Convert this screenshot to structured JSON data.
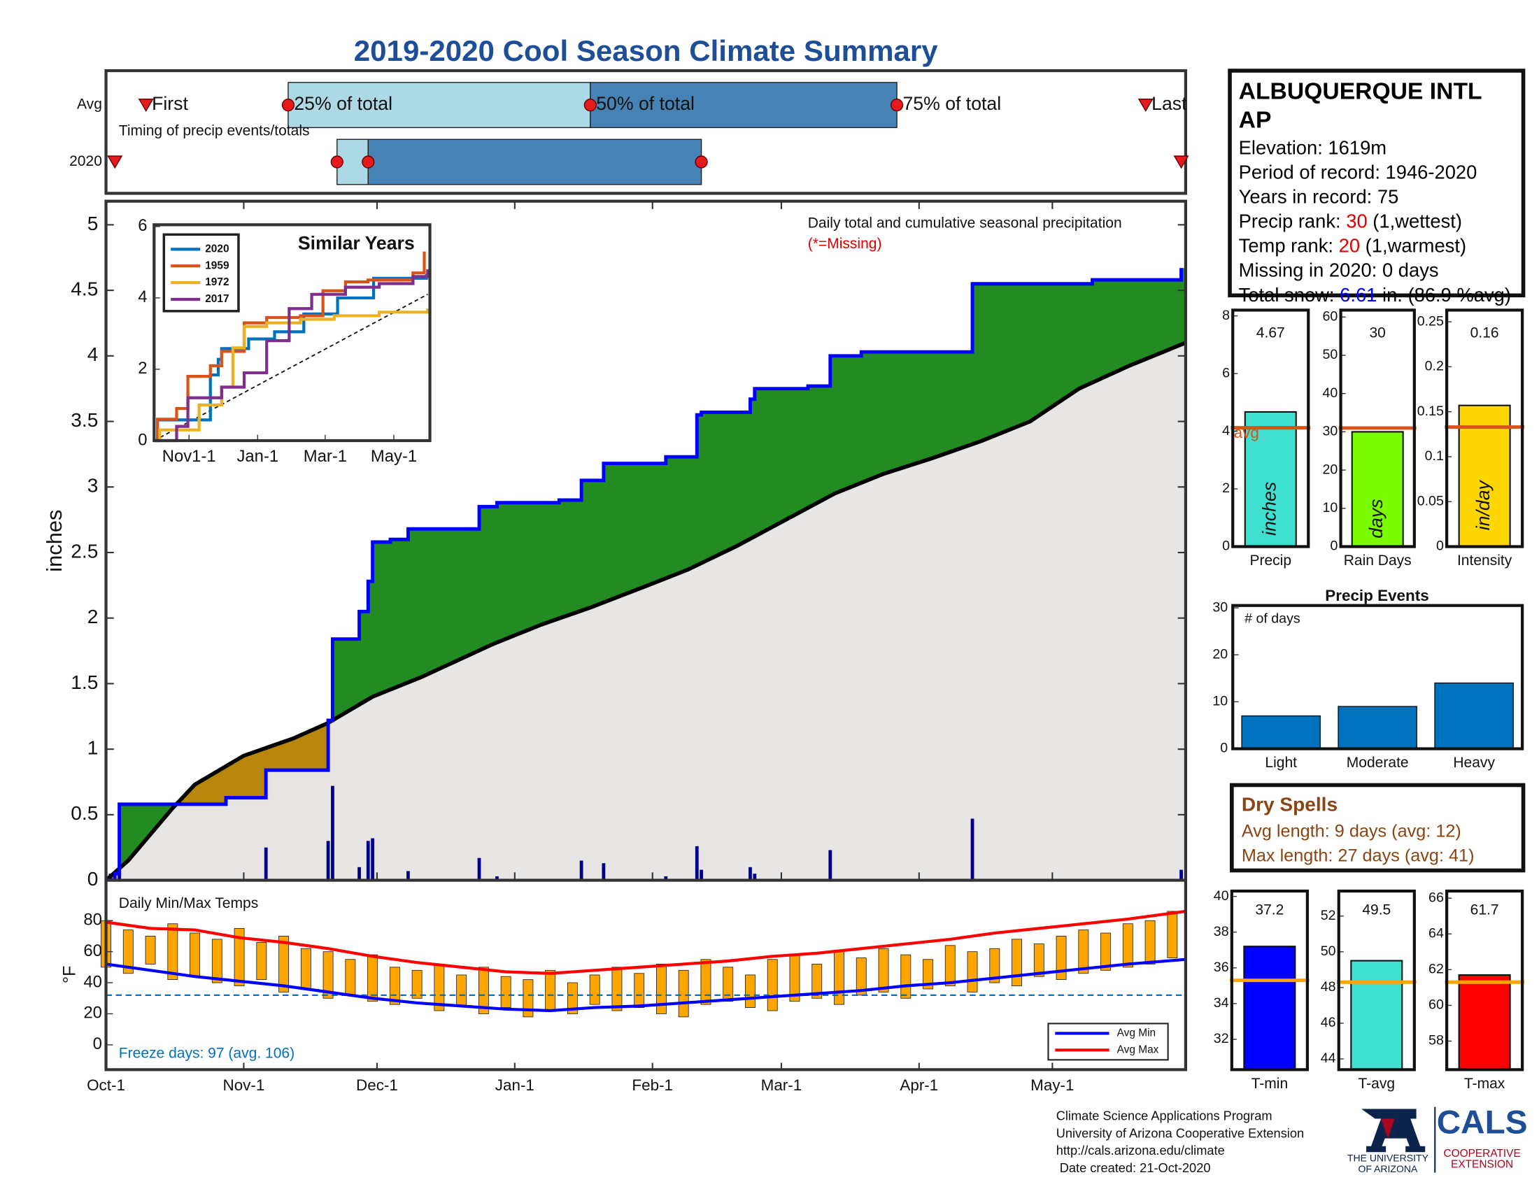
{
  "title": "2019-2020 Cool Season Climate Summary",
  "time_axis": {
    "xlim": [
      0,
      243
    ],
    "xticks": [
      {
        "value": 0,
        "label": "Oct-1"
      },
      {
        "value": 31,
        "label": "Nov-1"
      },
      {
        "value": 61,
        "label": "Dec-1"
      },
      {
        "value": 92,
        "label": "Jan-1"
      },
      {
        "value": 123,
        "label": "Feb-1"
      },
      {
        "value": 152,
        "label": "Mar-1"
      },
      {
        "value": 183,
        "label": "Apr-1"
      },
      {
        "value": 213,
        "label": "May-1"
      }
    ]
  },
  "timing": {
    "row_labels": [
      "Avg",
      "2020"
    ],
    "caption": "Timing of precip events/totals",
    "marker_labels": [
      "First",
      "25% of total",
      "50% of total",
      "75% of total",
      "Last"
    ],
    "avg": [
      9,
      41,
      109,
      178,
      234
    ],
    "y2020": [
      2,
      52,
      59,
      134,
      242
    ],
    "colors": {
      "light": "#add8e6",
      "dark": "#4682b4",
      "marker": "#e41a1c"
    }
  },
  "precip": {
    "type": "step",
    "caption": "Daily total and cumulative seasonal precipitation",
    "missing_note": "(*=Missing)",
    "ylabel": "inches",
    "ylim": [
      0,
      5.18
    ],
    "yticks": [
      0,
      0.5,
      1,
      1.5,
      2,
      2.5,
      3,
      3.5,
      4,
      4.5,
      5
    ],
    "cumulative": {
      "color": "#0000ff",
      "x": [
        0,
        2,
        3,
        27,
        36,
        50,
        51,
        57,
        59,
        60,
        64,
        68,
        84,
        88,
        102,
        107,
        112,
        126,
        133,
        134,
        145,
        146,
        158,
        163,
        170,
        195,
        222,
        242
      ],
      "values": [
        0,
        0.05,
        0.58,
        0.63,
        0.84,
        1.22,
        1.84,
        2.05,
        2.28,
        2.58,
        2.6,
        2.68,
        2.85,
        2.88,
        2.9,
        3.05,
        3.18,
        3.23,
        3.55,
        3.57,
        3.67,
        3.75,
        3.77,
        4.0,
        4.03,
        4.55,
        4.58,
        4.67
      ]
    },
    "average": {
      "color": "#000000",
      "x": [
        0,
        5,
        10,
        15,
        20,
        31,
        42,
        50,
        60,
        71,
        87,
        98,
        109,
        122,
        131,
        142,
        153,
        164,
        175,
        186,
        197,
        208,
        219,
        230,
        243
      ],
      "values": [
        0,
        0.15,
        0.35,
        0.55,
        0.73,
        0.95,
        1.08,
        1.2,
        1.4,
        1.55,
        1.8,
        1.95,
        2.08,
        2.25,
        2.37,
        2.55,
        2.75,
        2.95,
        3.1,
        3.22,
        3.35,
        3.5,
        3.75,
        3.92,
        4.1
      ]
    },
    "daily": {
      "color": "#00008b",
      "x": [
        1,
        3,
        36,
        50,
        51,
        57,
        59,
        60,
        68,
        84,
        88,
        107,
        112,
        126,
        133,
        134,
        145,
        146,
        163,
        195,
        242
      ],
      "values": [
        0.05,
        0.08,
        0.25,
        0.3,
        0.72,
        0.1,
        0.3,
        0.32,
        0.07,
        0.17,
        0.03,
        0.15,
        0.13,
        0.03,
        0.26,
        0.08,
        0.1,
        0.05,
        0.23,
        0.47,
        0.08
      ]
    },
    "colors": {
      "above": "#228b22",
      "below": "#b8860b",
      "base": "#e8e6e4"
    }
  },
  "inset": {
    "type": "line",
    "title": "Similar Years",
    "xlim": [
      0,
      245
    ],
    "ylim": [
      0,
      6.05
    ],
    "yticks": [
      0,
      2,
      4,
      6
    ],
    "xticks": [
      {
        "value": 31,
        "label": "Nov1-1"
      },
      {
        "value": 92,
        "label": "Jan-1"
      },
      {
        "value": 152,
        "label": "Mar-1"
      },
      {
        "value": 213,
        "label": "May-1"
      }
    ],
    "series": [
      {
        "name": "2020",
        "color": "#0072bd",
        "x": [
          0,
          3,
          50,
          57,
          60,
          84,
          107,
          133,
          163,
          195,
          242
        ],
        "values": [
          0,
          0.58,
          1.84,
          2.28,
          2.58,
          2.85,
          3.05,
          3.55,
          4.0,
          4.55,
          4.67
        ]
      },
      {
        "name": "1959",
        "color": "#d95319",
        "x": [
          0,
          3,
          20,
          30,
          50,
          60,
          80,
          100,
          130,
          150,
          170,
          190,
          210,
          230,
          240
        ],
        "values": [
          0,
          0.6,
          0.9,
          1.8,
          2.1,
          2.5,
          3.3,
          3.45,
          3.5,
          4.2,
          4.45,
          4.5,
          4.5,
          4.7,
          5.3
        ]
      },
      {
        "name": "1972",
        "color": "#edb120",
        "x": [
          0,
          5,
          40,
          60,
          70,
          80,
          100,
          130,
          160,
          200,
          243
        ],
        "values": [
          0,
          0.3,
          1.0,
          1.5,
          2.6,
          3.2,
          3.3,
          3.4,
          3.5,
          3.6,
          3.7
        ]
      },
      {
        "name": "2017",
        "color": "#7e2f8e",
        "x": [
          0,
          20,
          30,
          60,
          80,
          100,
          120,
          140,
          170,
          200,
          230,
          243
        ],
        "values": [
          0,
          0.4,
          1.2,
          1.5,
          1.9,
          2.8,
          3.7,
          4.1,
          4.3,
          4.4,
          4.6,
          4.8
        ]
      }
    ],
    "average": {
      "x": [
        0,
        243
      ],
      "values": [
        0,
        4.1
      ]
    }
  },
  "temps": {
    "type": "range-bar",
    "caption": "Daily Min/Max Temps",
    "ylabel": "°F",
    "ylim": [
      -16,
      106
    ],
    "yticks": [
      0,
      20,
      40,
      60,
      80
    ],
    "bar_color": "#ffa500",
    "freeze_line": 32,
    "freeze_color": "#0072bd",
    "freeze_note": "Freeze days: 97 (avg. 106)",
    "x": [
      0,
      5,
      10,
      15,
      20,
      25,
      30,
      35,
      40,
      45,
      50,
      55,
      60,
      65,
      70,
      75,
      80,
      85,
      90,
      95,
      100,
      105,
      110,
      115,
      120,
      125,
      130,
      135,
      140,
      145,
      150,
      155,
      160,
      165,
      170,
      175,
      180,
      185,
      190,
      195,
      200,
      205,
      210,
      215,
      220,
      225,
      230,
      235,
      240
    ],
    "max": [
      80,
      74,
      70,
      78,
      72,
      68,
      75,
      66,
      70,
      62,
      60,
      55,
      58,
      50,
      48,
      52,
      45,
      50,
      44,
      42,
      48,
      40,
      45,
      50,
      46,
      52,
      48,
      55,
      50,
      45,
      55,
      58,
      52,
      60,
      56,
      62,
      58,
      55,
      64,
      60,
      62,
      68,
      65,
      70,
      74,
      72,
      78,
      80,
      86
    ],
    "min": [
      50,
      46,
      52,
      42,
      44,
      40,
      38,
      42,
      34,
      36,
      30,
      32,
      28,
      26,
      30,
      22,
      25,
      20,
      24,
      18,
      22,
      20,
      26,
      22,
      24,
      20,
      18,
      26,
      28,
      24,
      22,
      28,
      30,
      26,
      32,
      34,
      30,
      36,
      38,
      34,
      40,
      38,
      44,
      42,
      46,
      48,
      50,
      52,
      56
    ],
    "series": [
      {
        "name": "Avg Min",
        "color": "#0000ff",
        "x": [
          0,
          10,
          20,
          30,
          40,
          50,
          60,
          70,
          80,
          90,
          100,
          110,
          120,
          130,
          140,
          150,
          160,
          170,
          180,
          190,
          200,
          210,
          220,
          230,
          243
        ],
        "values": [
          52,
          48,
          44,
          41,
          38,
          34,
          30,
          27,
          25,
          23,
          22,
          24,
          25,
          27,
          29,
          31,
          33,
          35,
          38,
          40,
          43,
          46,
          49,
          52,
          55
        ]
      },
      {
        "name": "Avg Max",
        "color": "#ff0000",
        "x": [
          0,
          10,
          20,
          30,
          40,
          50,
          60,
          70,
          80,
          90,
          100,
          110,
          120,
          130,
          140,
          150,
          160,
          170,
          180,
          190,
          200,
          210,
          220,
          230,
          243
        ],
        "values": [
          79,
          75,
          74,
          69,
          66,
          62,
          57,
          53,
          50,
          47,
          46,
          48,
          50,
          52,
          54,
          57,
          59,
          62,
          65,
          68,
          72,
          75,
          78,
          81,
          86
        ]
      }
    ]
  },
  "station": {
    "name": "ALBUQUERQUE INTL AP",
    "lines": [
      [
        {
          "text": "Elevation: 1619m"
        }
      ],
      [
        {
          "text": "Period of record: 1946-2020"
        }
      ],
      [
        {
          "text": "Years in record: 75"
        }
      ],
      [
        {
          "text": "Precip rank: "
        },
        {
          "text": "30",
          "color": "#e00000"
        },
        {
          "text": " (1,wettest)"
        }
      ],
      [
        {
          "text": "Temp rank: "
        },
        {
          "text": "20",
          "color": "#e00000"
        },
        {
          "text": " (1,warmest)"
        }
      ],
      [
        {
          "text": "Missing in 2020: 0 days"
        }
      ],
      [
        {
          "text": "Total snow: "
        },
        {
          "text": "6.61",
          "color": "#0000ff"
        },
        {
          "text": " in. (86.9 %avg)"
        }
      ]
    ]
  },
  "summary_bars": [
    {
      "type": "bar",
      "category": "Precip",
      "values": [
        4.67
      ],
      "unit": "inches",
      "avg": 4.12,
      "avg_label": "avg",
      "ylim": [
        0,
        8.2
      ],
      "yticks": [
        0,
        2,
        4,
        6,
        8
      ],
      "color": "#40e0d0"
    },
    {
      "type": "bar",
      "category": "Rain Days",
      "values": [
        30
      ],
      "unit": "days",
      "avg": 31,
      "ylim": [
        0,
        61.8
      ],
      "yticks": [
        0,
        10,
        20,
        30,
        40,
        50,
        60
      ],
      "color": "#7cfc00"
    },
    {
      "type": "bar",
      "category": "Intensity",
      "values": [
        0.157
      ],
      "value_labels": [
        "0.16"
      ],
      "unit": "in/day",
      "avg": 0.133,
      "ylim": [
        0,
        0.263
      ],
      "yticks": [
        0,
        0.05,
        0.1,
        0.15,
        0.2,
        0.25
      ],
      "color": "#ffd700"
    }
  ],
  "summary_avg_color": "#d95319",
  "events": {
    "type": "bar",
    "title": "Precip Events",
    "note": "# of days",
    "categories": [
      "Light",
      "Moderate",
      "Heavy"
    ],
    "values": [
      7,
      9,
      14
    ],
    "ylim": [
      0,
      30.5
    ],
    "yticks": [
      0,
      10,
      20,
      30
    ],
    "color": "#0072bd"
  },
  "dry_spells": {
    "title": "Dry Spells",
    "lines": [
      "Avg length: 9 days (avg: 12)",
      "Max length: 27 days (avg: 41)"
    ],
    "color": "#8b4513"
  },
  "temp_bars": [
    {
      "type": "bar",
      "category": "T-min",
      "values": [
        37.2
      ],
      "avg": 35.3,
      "ylim": [
        30.3,
        40.3
      ],
      "yticks": [
        32,
        34,
        36,
        38,
        40
      ],
      "color": "#0000ff"
    },
    {
      "type": "bar",
      "category": "T-avg",
      "values": [
        49.5
      ],
      "avg": 48.3,
      "ylim": [
        43.4,
        53.4
      ],
      "yticks": [
        44,
        46,
        48,
        50,
        52
      ],
      "color": "#40e0d0"
    },
    {
      "type": "bar",
      "category": "T-max",
      "values": [
        61.7
      ],
      "avg": 61.3,
      "ylim": [
        56.4,
        66.4
      ],
      "yticks": [
        58,
        60,
        62,
        64,
        66
      ],
      "color": "#ff0000"
    }
  ],
  "temp_avg_color": "#ffa500",
  "footer": {
    "lines": [
      "Climate Science Applications Program",
      "University of Arizona Cooperative Extension",
      "http://cals.arizona.edu/climate",
      " Date created: 21-Oct-2020"
    ],
    "university": [
      "THE UNIVERSITY",
      "OF ARIZONA"
    ],
    "cals": "CALS",
    "extension": [
      "COOPERATIVE",
      "EXTENSION"
    ]
  }
}
